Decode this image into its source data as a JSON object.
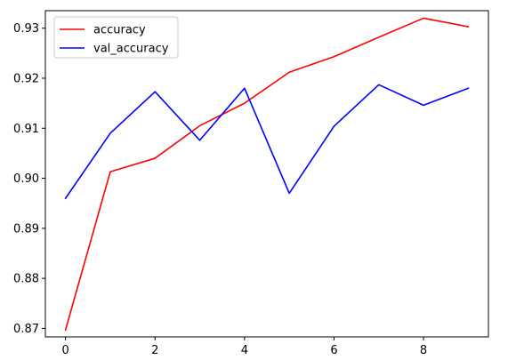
{
  "chart_data": {
    "type": "line",
    "title": "",
    "xlabel": "",
    "ylabel": "",
    "x": [
      0,
      1,
      2,
      3,
      4,
      5,
      6,
      7,
      8,
      9
    ],
    "xlim": [
      -0.45,
      9.45
    ],
    "ylim": [
      0.8683,
      0.9335
    ],
    "xticks": [
      0,
      2,
      4,
      6,
      8
    ],
    "yticks": [
      0.87,
      0.88,
      0.89,
      0.9,
      0.91,
      0.92,
      0.93
    ],
    "xtick_labels": [
      "0",
      "2",
      "4",
      "6",
      "8"
    ],
    "ytick_labels": [
      "0.87",
      "0.88",
      "0.89",
      "0.90",
      "0.91",
      "0.92",
      "0.93"
    ],
    "grid": false,
    "legend_position": "top-left",
    "series": [
      {
        "name": "accuracy",
        "color": "#ff0000",
        "values": [
          0.8697,
          0.9013,
          0.904,
          0.9105,
          0.915,
          0.9212,
          0.9243,
          0.9282,
          0.932,
          0.9303
        ]
      },
      {
        "name": "val_accuracy",
        "color": "#0000ff",
        "values": [
          0.896,
          0.909,
          0.9173,
          0.9076,
          0.918,
          0.897,
          0.9104,
          0.9187,
          0.9146,
          0.918
        ]
      }
    ]
  }
}
